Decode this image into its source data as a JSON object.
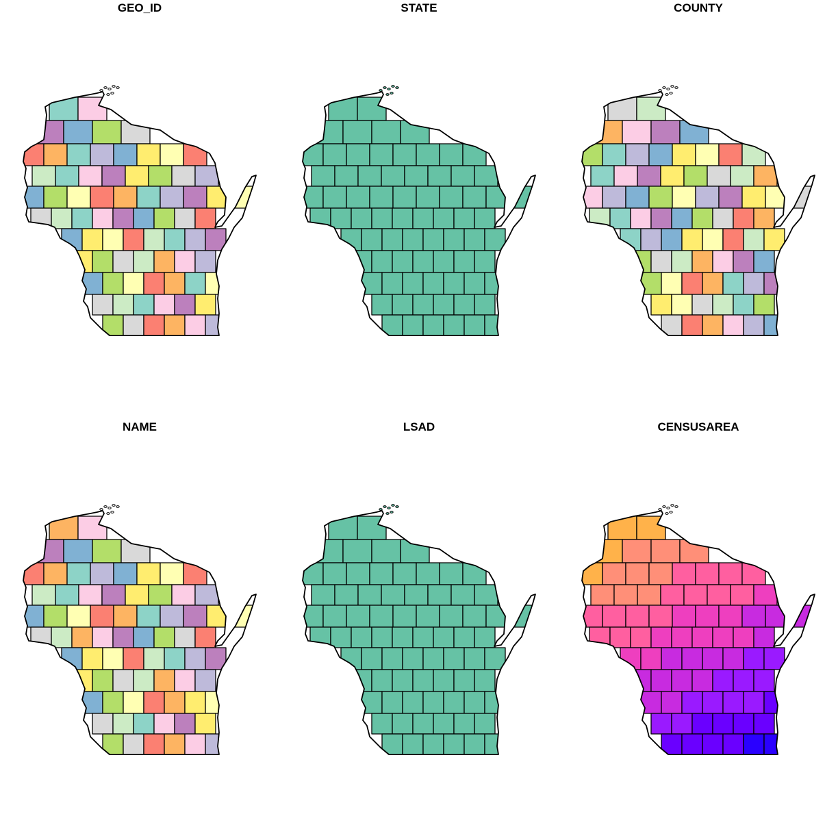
{
  "figure": {
    "panels": [
      {
        "id": "geo-id",
        "title": "GEO_ID",
        "scheme": "qualitative"
      },
      {
        "id": "state",
        "title": "STATE",
        "scheme": "single",
        "color": "#66c2a5"
      },
      {
        "id": "county",
        "title": "COUNTY",
        "scheme": "qualitative"
      },
      {
        "id": "name",
        "title": "NAME",
        "scheme": "qualitative"
      },
      {
        "id": "lsad",
        "title": "LSAD",
        "scheme": "single",
        "color": "#66c2a5"
      },
      {
        "id": "censusarea",
        "title": "CENSUSAREA",
        "scheme": "continuous"
      }
    ],
    "palettes": {
      "qualitative": [
        "#8dd3c7",
        "#ffffb3",
        "#bebada",
        "#fb8072",
        "#80b1d3",
        "#fdb462",
        "#b3de69",
        "#fccde5",
        "#d9d9d9",
        "#bc80bd",
        "#ccebc5",
        "#ffed6f"
      ],
      "continuous": [
        "#0000cc",
        "#2a00ff",
        "#6a00ff",
        "#9a1aff",
        "#c82be0",
        "#ee3fbf",
        "#ff5fa0",
        "#ff8f78",
        "#ffb24a",
        "#ffd52a",
        "#ffff00"
      ]
    }
  }
}
